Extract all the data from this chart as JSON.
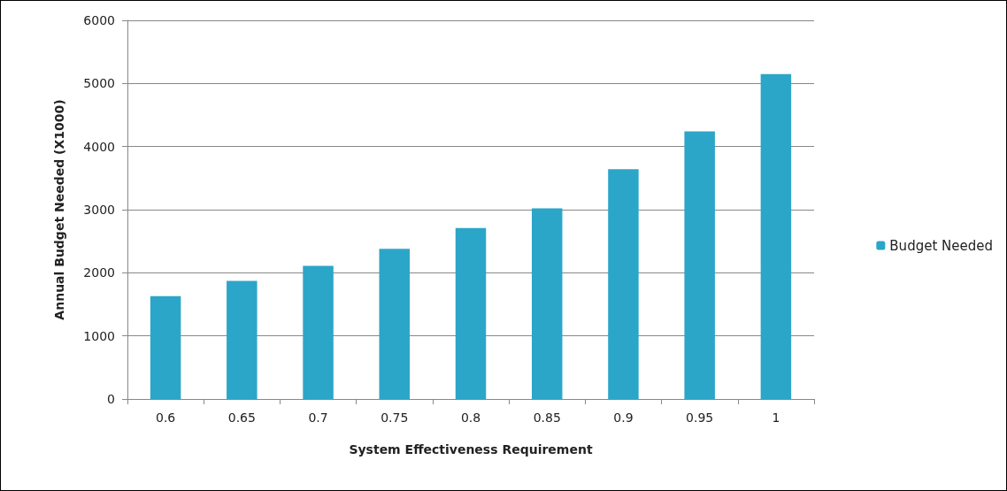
{
  "chart_data": {
    "type": "bar",
    "xlabel": "System Effectiveness Requirement",
    "ylabel": "Annual Budget Needed (X1000)",
    "categories": [
      "0.6",
      "0.65",
      "0.7",
      "0.75",
      "0.8",
      "0.85",
      "0.9",
      "0.95",
      "1"
    ],
    "series": [
      {
        "name": "Budget Needed",
        "color": "#2ba6c8",
        "values": [
          1630,
          1870,
          2110,
          2380,
          2710,
          3020,
          3640,
          4240,
          5150
        ]
      }
    ],
    "ylim": [
      0,
      6000
    ],
    "yticks": [
      0,
      1000,
      2000,
      3000,
      4000,
      5000,
      6000
    ],
    "grid": "y",
    "legend": "right"
  }
}
